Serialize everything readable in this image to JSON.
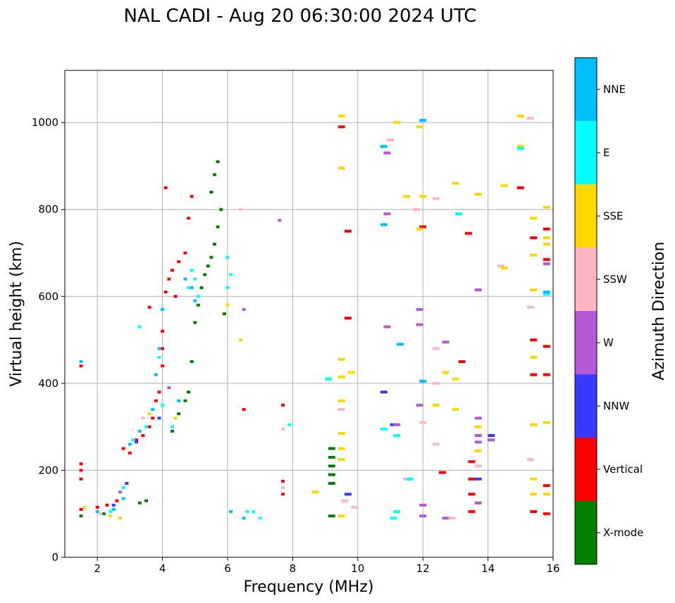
{
  "chart_data": {
    "type": "scatter",
    "title": "NAL CADI - Aug 20 06:30:00 2024 UTC",
    "xlabel": "Frequency (MHz)",
    "ylabel": "Virtual height (km)",
    "xlim": [
      1,
      16
    ],
    "ylim": [
      0,
      1120
    ],
    "xticks": [
      2,
      4,
      6,
      8,
      10,
      12,
      14,
      16
    ],
    "yticks": [
      0,
      200,
      400,
      600,
      800,
      1000
    ],
    "grid": true,
    "colorbar": {
      "label": "Azimuth Direction",
      "categories": [
        "X-mode",
        "Vertical",
        "NNW",
        "W",
        "SSW",
        "SSE",
        "E",
        "NNE"
      ],
      "colors": [
        "#008000",
        "#ff0000",
        "#3a3aff",
        "#b558d8",
        "#ffb6c1",
        "#ffd700",
        "#00ffff",
        "#00bfff"
      ]
    },
    "series": [
      {
        "name": "X-mode",
        "points": [
          [
            1.5,
            95
          ],
          [
            2.2,
            100
          ],
          [
            3.3,
            125
          ],
          [
            3.5,
            130
          ],
          [
            4.3,
            290
          ],
          [
            4.5,
            330
          ],
          [
            4.7,
            360
          ],
          [
            4.8,
            380
          ],
          [
            4.9,
            450
          ],
          [
            5.0,
            540
          ],
          [
            5.1,
            580
          ],
          [
            5.2,
            620
          ],
          [
            5.3,
            650
          ],
          [
            5.4,
            670
          ],
          [
            5.5,
            690
          ],
          [
            5.6,
            720
          ],
          [
            5.7,
            760
          ],
          [
            5.8,
            800
          ],
          [
            5.5,
            840
          ],
          [
            5.6,
            880
          ],
          [
            5.7,
            910
          ],
          [
            5.9,
            560
          ],
          [
            9.2,
            250
          ],
          [
            9.2,
            230
          ],
          [
            9.2,
            210
          ],
          [
            9.2,
            190
          ],
          [
            9.2,
            170
          ],
          [
            9.2,
            95
          ]
        ]
      },
      {
        "name": "Vertical",
        "points": [
          [
            1.5,
            110
          ],
          [
            1.5,
            180
          ],
          [
            1.5,
            200
          ],
          [
            1.5,
            215
          ],
          [
            1.5,
            440
          ],
          [
            2.0,
            115
          ],
          [
            2.3,
            120
          ],
          [
            2.6,
            130
          ],
          [
            2.8,
            250
          ],
          [
            3.0,
            240
          ],
          [
            3.2,
            270
          ],
          [
            3.4,
            280
          ],
          [
            3.6,
            300
          ],
          [
            3.7,
            320
          ],
          [
            3.8,
            360
          ],
          [
            3.9,
            380
          ],
          [
            4.0,
            440
          ],
          [
            4.0,
            480
          ],
          [
            4.0,
            520
          ],
          [
            3.6,
            575
          ],
          [
            4.1,
            610
          ],
          [
            4.2,
            640
          ],
          [
            4.4,
            600
          ],
          [
            4.3,
            660
          ],
          [
            4.5,
            680
          ],
          [
            4.7,
            700
          ],
          [
            4.8,
            780
          ],
          [
            4.1,
            850
          ],
          [
            4.9,
            830
          ],
          [
            6.5,
            340
          ],
          [
            7.7,
            350
          ],
          [
            7.7,
            175
          ],
          [
            7.7,
            145
          ],
          [
            9.5,
            990
          ],
          [
            9.7,
            750
          ],
          [
            9.7,
            550
          ],
          [
            12.0,
            760
          ],
          [
            12.6,
            195
          ],
          [
            13.2,
            450
          ],
          [
            13.4,
            745
          ],
          [
            13.5,
            220
          ],
          [
            13.5,
            180
          ],
          [
            13.5,
            145
          ],
          [
            13.5,
            105
          ],
          [
            15.0,
            850
          ],
          [
            15.4,
            735
          ],
          [
            15.4,
            500
          ],
          [
            15.4,
            420
          ],
          [
            15.4,
            105
          ],
          [
            15.8,
            755
          ],
          [
            15.8,
            685
          ],
          [
            15.8,
            485
          ],
          [
            15.8,
            420
          ],
          [
            15.8,
            165
          ],
          [
            15.8,
            100
          ]
        ]
      },
      {
        "name": "NNW",
        "points": [
          [
            2.5,
            120
          ],
          [
            2.9,
            170
          ],
          [
            3.2,
            265
          ],
          [
            3.9,
            320
          ],
          [
            9.7,
            145
          ],
          [
            10.8,
            380
          ],
          [
            11.1,
            305
          ],
          [
            13.7,
            180
          ],
          [
            14.1,
            280
          ]
        ]
      },
      {
        "name": "W",
        "points": [
          [
            2.7,
            150
          ],
          [
            4.2,
            390
          ],
          [
            6.5,
            570
          ],
          [
            7.6,
            775
          ],
          [
            10.9,
            930
          ],
          [
            10.9,
            790
          ],
          [
            10.9,
            530
          ],
          [
            11.9,
            570
          ],
          [
            11.9,
            535
          ],
          [
            11.9,
            350
          ],
          [
            12.0,
            120
          ],
          [
            12.0,
            95
          ],
          [
            12.7,
            495
          ],
          [
            12.7,
            90
          ],
          [
            13.7,
            615
          ],
          [
            13.7,
            320
          ],
          [
            13.7,
            280
          ],
          [
            13.7,
            265
          ],
          [
            13.7,
            125
          ],
          [
            14.1,
            270
          ],
          [
            15.8,
            675
          ],
          [
            11.2,
            305
          ]
        ]
      },
      {
        "name": "SSW",
        "points": [
          [
            2.1,
            100
          ],
          [
            3.4,
            320
          ],
          [
            6.4,
            800
          ],
          [
            7.7,
            295
          ],
          [
            7.7,
            160
          ],
          [
            9.5,
            340
          ],
          [
            9.6,
            130
          ],
          [
            9.9,
            115
          ],
          [
            11.0,
            960
          ],
          [
            11.5,
            180
          ],
          [
            11.8,
            800
          ],
          [
            12.0,
            310
          ],
          [
            12.4,
            825
          ],
          [
            12.4,
            480
          ],
          [
            12.4,
            400
          ],
          [
            12.4,
            260
          ],
          [
            12.9,
            90
          ],
          [
            13.7,
            210
          ],
          [
            14.4,
            670
          ],
          [
            15.3,
            1010
          ],
          [
            15.3,
            575
          ],
          [
            15.3,
            225
          ]
        ]
      },
      {
        "name": "SSE",
        "points": [
          [
            1.6,
            115
          ],
          [
            2.4,
            95
          ],
          [
            2.7,
            90
          ],
          [
            3.6,
            330
          ],
          [
            4.4,
            320
          ],
          [
            6.0,
            580
          ],
          [
            6.4,
            500
          ],
          [
            8.7,
            150
          ],
          [
            9.5,
            1015
          ],
          [
            9.5,
            895
          ],
          [
            9.5,
            455
          ],
          [
            9.5,
            415
          ],
          [
            9.5,
            360
          ],
          [
            9.5,
            285
          ],
          [
            9.5,
            250
          ],
          [
            9.5,
            225
          ],
          [
            9.5,
            95
          ],
          [
            9.8,
            425
          ],
          [
            11.2,
            1000
          ],
          [
            11.5,
            830
          ],
          [
            11.9,
            990
          ],
          [
            11.9,
            755
          ],
          [
            12.0,
            830
          ],
          [
            12.4,
            350
          ],
          [
            12.7,
            425
          ],
          [
            13.0,
            860
          ],
          [
            13.0,
            410
          ],
          [
            13.0,
            340
          ],
          [
            13.7,
            835
          ],
          [
            13.7,
            300
          ],
          [
            13.7,
            245
          ],
          [
            14.5,
            855
          ],
          [
            14.5,
            665
          ],
          [
            15.0,
            1015
          ],
          [
            15.0,
            945
          ],
          [
            15.4,
            780
          ],
          [
            15.4,
            695
          ],
          [
            15.4,
            615
          ],
          [
            15.4,
            460
          ],
          [
            15.4,
            305
          ],
          [
            15.4,
            180
          ],
          [
            15.4,
            145
          ],
          [
            15.8,
            805
          ],
          [
            15.8,
            735
          ],
          [
            15.8,
            720
          ],
          [
            15.8,
            310
          ],
          [
            15.8,
            145
          ]
        ]
      },
      {
        "name": "E",
        "points": [
          [
            2.4,
            105
          ],
          [
            2.8,
            160
          ],
          [
            3.1,
            270
          ],
          [
            3.3,
            530
          ],
          [
            3.5,
            300
          ],
          [
            3.9,
            460
          ],
          [
            4.0,
            350
          ],
          [
            4.3,
            300
          ],
          [
            4.8,
            620
          ],
          [
            4.9,
            660
          ],
          [
            5.0,
            640
          ],
          [
            5.1,
            600
          ],
          [
            6.0,
            690
          ],
          [
            6.0,
            620
          ],
          [
            6.1,
            650
          ],
          [
            6.6,
            105
          ],
          [
            6.8,
            105
          ],
          [
            7.0,
            90
          ],
          [
            7.9,
            305
          ],
          [
            9.1,
            410
          ],
          [
            10.8,
            295
          ],
          [
            11.1,
            90
          ],
          [
            11.2,
            280
          ],
          [
            11.2,
            105
          ],
          [
            11.6,
            180
          ],
          [
            13.1,
            790
          ],
          [
            15.0,
            940
          ],
          [
            15.8,
            605
          ]
        ]
      },
      {
        "name": "NNE",
        "points": [
          [
            1.5,
            450
          ],
          [
            2.0,
            105
          ],
          [
            2.5,
            110
          ],
          [
            2.8,
            135
          ],
          [
            3.0,
            260
          ],
          [
            3.3,
            290
          ],
          [
            3.7,
            340
          ],
          [
            3.8,
            420
          ],
          [
            3.9,
            480
          ],
          [
            4.0,
            570
          ],
          [
            4.5,
            360
          ],
          [
            4.7,
            640
          ],
          [
            4.9,
            620
          ],
          [
            5.0,
            590
          ],
          [
            6.1,
            105
          ],
          [
            6.5,
            90
          ],
          [
            10.8,
            765
          ],
          [
            10.8,
            945
          ],
          [
            11.3,
            490
          ],
          [
            12.0,
            1005
          ],
          [
            12.0,
            405
          ],
          [
            15.8,
            610
          ]
        ]
      }
    ]
  }
}
